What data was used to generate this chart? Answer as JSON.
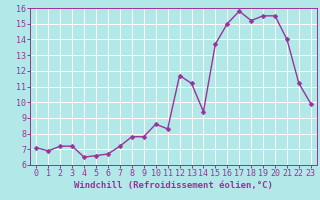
{
  "x": [
    0,
    1,
    2,
    3,
    4,
    5,
    6,
    7,
    8,
    9,
    10,
    11,
    12,
    13,
    14,
    15,
    16,
    17,
    18,
    19,
    20,
    21,
    22,
    23
  ],
  "y": [
    7.1,
    6.9,
    7.2,
    7.2,
    6.5,
    6.6,
    6.7,
    7.2,
    7.8,
    7.8,
    8.6,
    8.3,
    11.7,
    11.2,
    9.4,
    13.7,
    15.0,
    15.8,
    15.2,
    15.5,
    15.5,
    14.0,
    11.2,
    9.9
  ],
  "line_color": "#993399",
  "marker_color": "#993399",
  "bg_color": "#b3e8e8",
  "grid_color": "#ffffff",
  "xlabel": "Windchill (Refroidissement éolien,°C)",
  "xlabel_color": "#993399",
  "tick_color": "#993399",
  "spine_color": "#993399",
  "ylim": [
    6,
    16
  ],
  "xlim": [
    -0.5,
    23.5
  ],
  "yticks": [
    6,
    7,
    8,
    9,
    10,
    11,
    12,
    13,
    14,
    15,
    16
  ],
  "xticks": [
    0,
    1,
    2,
    3,
    4,
    5,
    6,
    7,
    8,
    9,
    10,
    11,
    12,
    13,
    14,
    15,
    16,
    17,
    18,
    19,
    20,
    21,
    22,
    23
  ],
  "marker_size": 2.5,
  "line_width": 1.0,
  "xlabel_fontsize": 6.5,
  "tick_fontsize": 6.0
}
